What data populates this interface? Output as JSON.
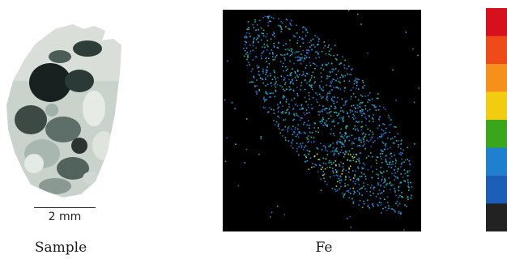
{
  "captions": {
    "sample": "Sample",
    "fe": "Fe"
  },
  "scale_bar": {
    "label": "2 mm"
  },
  "colorbar": {
    "colors": [
      "#d8101e",
      "#ee4a1a",
      "#f6901a",
      "#f2cc10",
      "#3aa61c",
      "#2080d0",
      "#1b5fb8",
      "#222222"
    ]
  },
  "images": {
    "sample_photo": "rock-sample-photo",
    "fe_map": "iron-elemental-map"
  }
}
